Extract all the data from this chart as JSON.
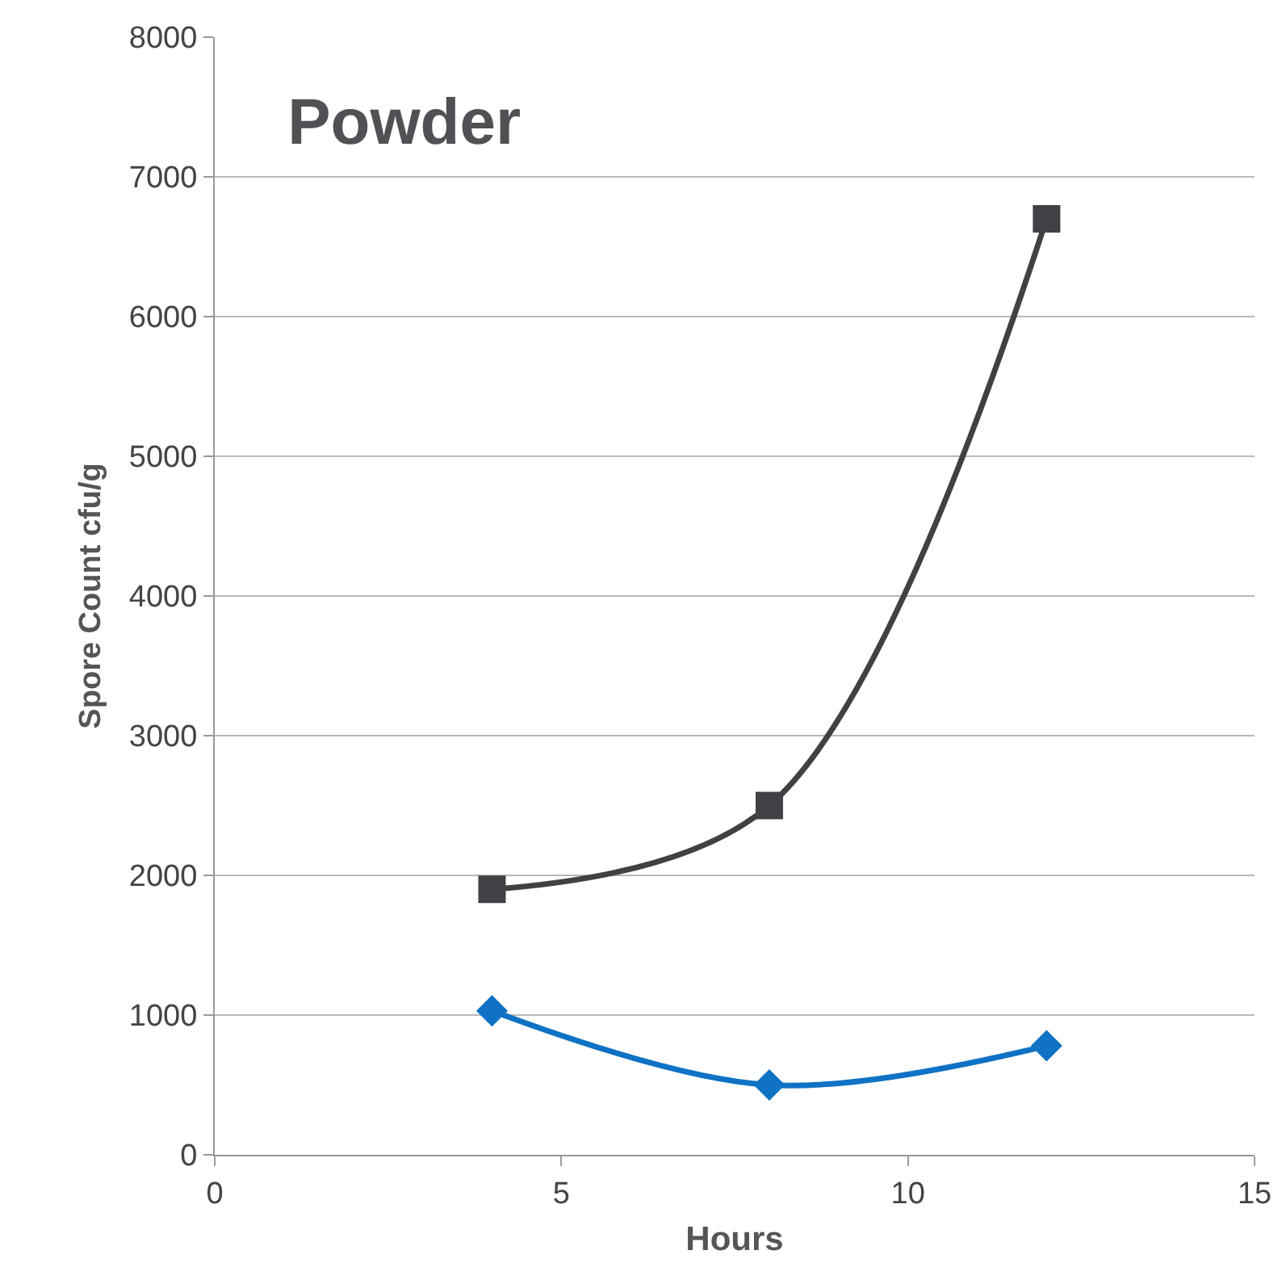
{
  "chart_data": {
    "type": "line",
    "title": "Powder",
    "xlabel": "Hours",
    "ylabel": "Spore Count cfu/g",
    "x": [
      4,
      8,
      12
    ],
    "series": [
      {
        "color": "#404045",
        "marker": "square",
        "values": [
          1900,
          2500,
          6700
        ]
      },
      {
        "color": "#0f72c4",
        "marker": "diamond",
        "values": [
          1030,
          500,
          780
        ]
      }
    ],
    "xlim": [
      0,
      15
    ],
    "xticks": [
      0,
      5,
      10,
      15
    ],
    "ylim": [
      0,
      8000
    ],
    "yticks": [
      0,
      1000,
      2000,
      3000,
      4000,
      5000,
      6000,
      7000,
      8000
    ],
    "grid": "y"
  }
}
